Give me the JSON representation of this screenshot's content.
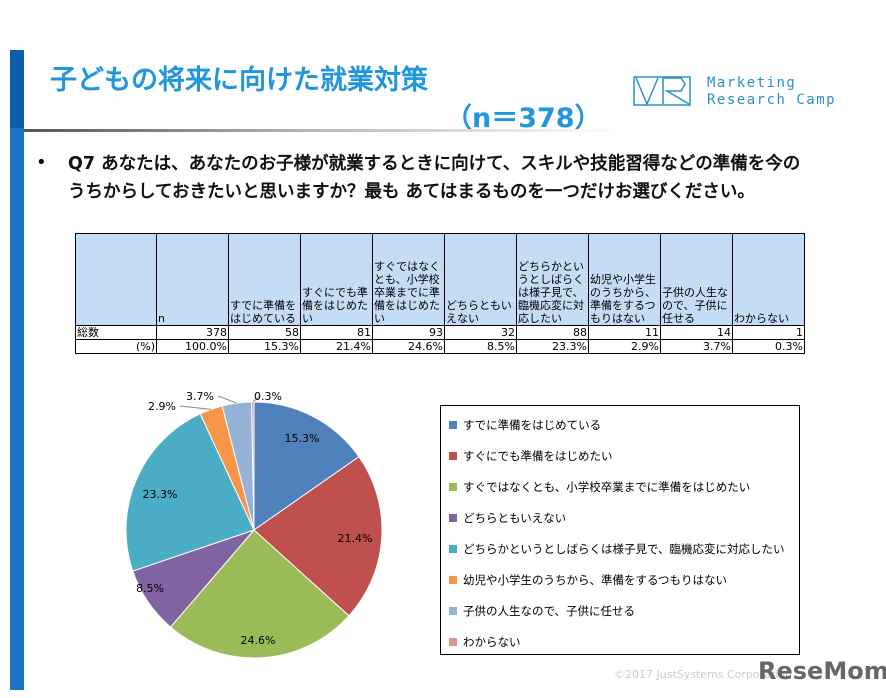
{
  "header": {
    "title": "子どもの将来に向けた就業対策",
    "n_label": "（n＝378）",
    "logo_text_1": "Marketing",
    "logo_text_2": "Research Camp",
    "logo_mark": "MR"
  },
  "question": {
    "bullet": "•",
    "text": "Q7 あなたは、あなたのお子様が就業するときに向けて、スキルや技能習得などの準備を今のうちからしておきたいと思いますか？最も あてはまるものを一つだけお選びください。"
  },
  "table": {
    "headers": [
      "",
      "n",
      "すでに準備をはじめている",
      "すぐにでも準備をはじめたい",
      "すぐではなくとも、小学校卒業までに準備をはじめたい",
      "どちらともいえない",
      "どちらかというとしばらくは様子見で、臨機応変に対応したい",
      "幼児や小学生のうちから、準備をするつもりはない",
      "子供の人生なので、子供に任せる",
      "わからない"
    ],
    "rows": [
      [
        "総数",
        "378",
        "58",
        "81",
        "93",
        "32",
        "88",
        "11",
        "14",
        "1"
      ],
      [
        "(%)",
        "100.0%",
        "15.3%",
        "21.4%",
        "24.6%",
        "8.5%",
        "23.3%",
        "2.9%",
        "3.7%",
        "0.3%"
      ]
    ]
  },
  "chart_data": {
    "type": "pie",
    "categories": [
      "すでに準備をはじめている",
      "すぐにでも準備をはじめたい",
      "すぐではなくとも、小学校卒業までに準備をはじめたい",
      "どちらともいえない",
      "どちらかというとしばらくは様子見で、臨機応変に対応したい",
      "幼児や小学生のうちから、準備をするつもりはない",
      "子供の人生なので、子供に任せる",
      "わからない"
    ],
    "values": [
      15.3,
      21.4,
      24.6,
      8.5,
      23.3,
      2.9,
      3.7,
      0.3
    ],
    "labels": [
      "15.3%",
      "21.4%",
      "24.6%",
      "8.5%",
      "23.3%",
      "2.9%",
      "3.7%",
      "0.3%"
    ],
    "colors": [
      "#4f81bd",
      "#c0504d",
      "#9bbb59",
      "#8064a2",
      "#4bacc6",
      "#f79646",
      "#95b3d7",
      "#d99694"
    ],
    "legend_position": "right"
  },
  "footer": {
    "copyright": "©2017 JustSystems Corporation",
    "brand": "ReseMom"
  }
}
